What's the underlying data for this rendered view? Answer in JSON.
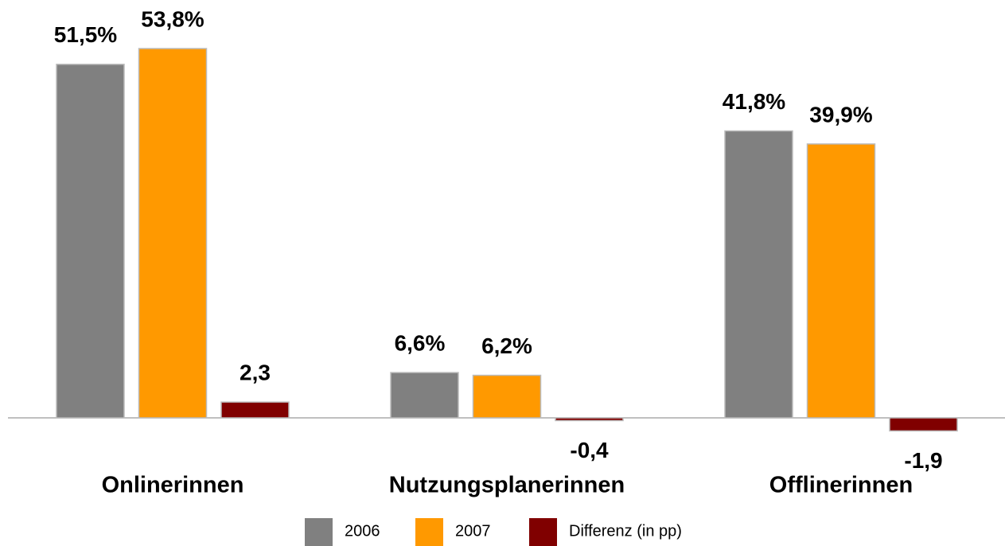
{
  "chart_data": {
    "type": "bar",
    "categories": [
      "Onlinerinnen",
      "Nutzungsplanerinnen",
      "Offlinerinnen"
    ],
    "series": [
      {
        "name": "2006",
        "color": "#808080",
        "values": [
          51.5,
          6.6,
          41.8
        ],
        "value_labels": [
          "51,5%",
          "6,6%",
          "41,8%"
        ]
      },
      {
        "name": "2007",
        "color": "#ff9900",
        "values": [
          53.8,
          6.2,
          39.9
        ],
        "value_labels": [
          "53,8%",
          "6,2%",
          "39,9%"
        ]
      },
      {
        "name": "Differenz (in pp)",
        "color": "#800000",
        "values": [
          2.3,
          -0.4,
          -1.9
        ],
        "value_labels": [
          "2,3",
          "-0,4",
          "-1,9"
        ]
      }
    ]
  }
}
